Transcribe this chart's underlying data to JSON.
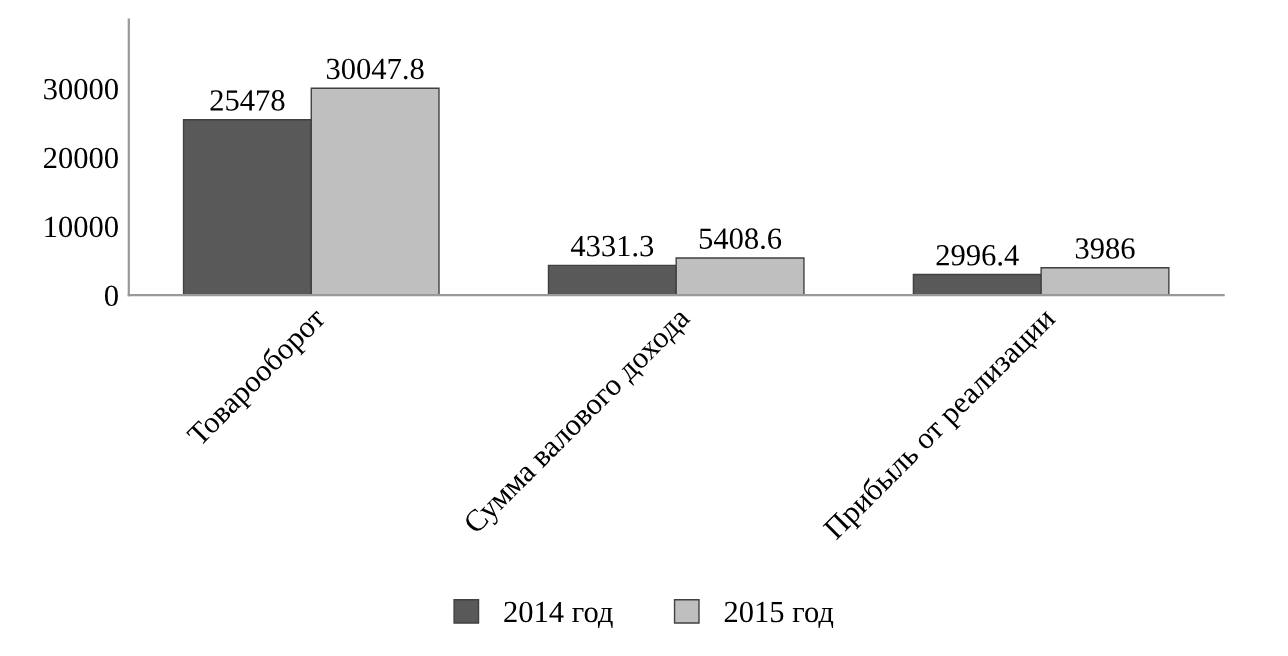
{
  "chart_data": {
    "type": "bar",
    "categories": [
      "Товарооборот",
      "Сумма валового дохода",
      "Прибыль от реализации"
    ],
    "series": [
      {
        "name": "2014 год",
        "color": "#595959",
        "values": [
          25478,
          4331.3,
          2996.4
        ]
      },
      {
        "name": "2015 год",
        "color": "#bfbfbf",
        "values": [
          30047.8,
          5408.6,
          3986
        ]
      }
    ],
    "ylim": [
      0,
      40000
    ],
    "yticks": [
      0,
      10000,
      20000,
      30000
    ],
    "grid": false,
    "legend": "bottom",
    "data_labels": true
  }
}
